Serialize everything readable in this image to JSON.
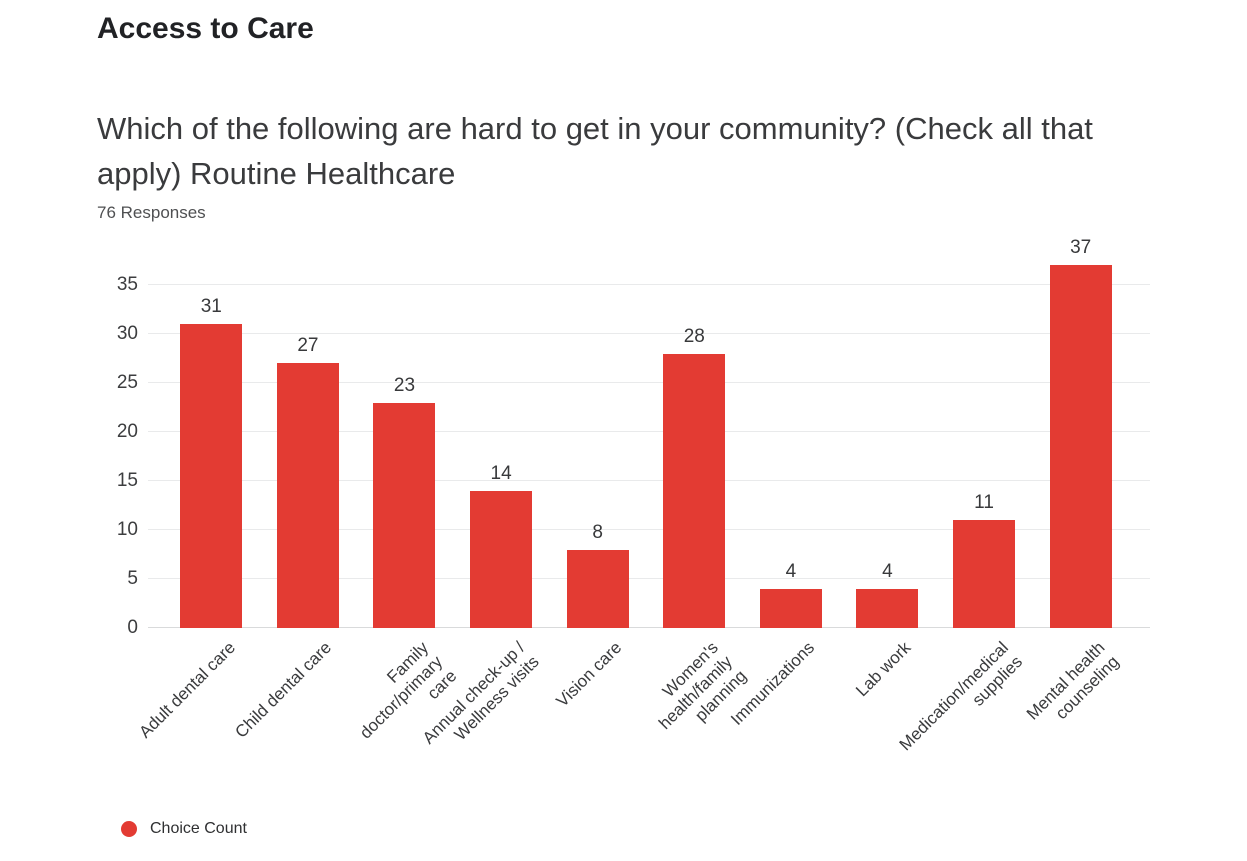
{
  "header": {
    "section_title": "Access to Care",
    "question": "Which of the following are hard to get in your community? (Check all that apply) Routine Healthcare",
    "question_lines": [
      "Which of the following are hard to get in your community? (Check all that",
      "apply) Routine Healthcare"
    ],
    "responses_label": "76 Responses"
  },
  "legend": {
    "label": "Choice Count",
    "marker_color": "#e33b33"
  },
  "chart_data": {
    "type": "bar",
    "title": "Which of the following are hard to get in your community? (Check all that apply) Routine Healthcare",
    "subtitle": "76 Responses",
    "categories": [
      "Adult dental care",
      "Child dental care",
      "Family doctor/primary care",
      "Annual check-up / Wellness visits",
      "Vision care",
      "Women's health/family planning",
      "Immunizations",
      "Lab work",
      "Medication/medical supplies",
      "Mental health counseling"
    ],
    "category_display_lines": [
      [
        "Adult dental care"
      ],
      [
        "Child dental care"
      ],
      [
        "Family",
        "doctor/primary",
        "care"
      ],
      [
        "Annual check-up /",
        "Wellness visits"
      ],
      [
        "Vision care"
      ],
      [
        "Women's",
        "health/family",
        "planning"
      ],
      [
        "Immunizations"
      ],
      [
        "Lab work"
      ],
      [
        "Medication/medical",
        "supplies"
      ],
      [
        "Mental health",
        "counseling"
      ]
    ],
    "series": [
      {
        "name": "Choice Count",
        "color": "#e33b33",
        "values": [
          31,
          27,
          23,
          14,
          8,
          28,
          4,
          4,
          11,
          37
        ]
      }
    ],
    "value_labels_shown": true,
    "xlabel": "",
    "ylabel": "",
    "y_ticks": [
      0,
      5,
      10,
      15,
      20,
      25,
      30,
      35
    ],
    "ylim": [
      0,
      37.6
    ],
    "grid": true,
    "legend_position": "bottom-left"
  }
}
